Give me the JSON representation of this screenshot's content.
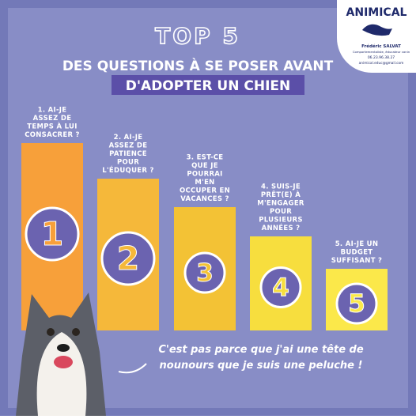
{
  "logo": {
    "brand": "ANIMICAL",
    "name": "Frédéric SALVAT",
    "tagline": "Comportementaliste, éducateur canin",
    "phone": "06.23.96.38.27",
    "email": "animical.educ@gmail.com"
  },
  "header": {
    "kicker": "TOP 5",
    "line1": "DES QUESTIONS À SE POSER AVANT",
    "line2": "D'ADOPTER UN CHIEN"
  },
  "steps": [
    {
      "number": "1",
      "lines": [
        "1. AI-JE",
        "ASSEZ DE",
        "TEMPS À LUI",
        "CONSACRER ?"
      ]
    },
    {
      "number": "2",
      "lines": [
        "2. AI-JE",
        "ASSEZ DE",
        "PATIENCE",
        "POUR",
        "L'ÉDUQUER ?"
      ]
    },
    {
      "number": "3",
      "lines": [
        "3. EST-CE",
        "QUE JE",
        "POURRAI",
        "M'EN",
        "OCCUPER EN",
        "VACANCES ?"
      ]
    },
    {
      "number": "4",
      "lines": [
        "4. SUIS-JE",
        "PRÊT(E) À",
        "M'ENGAGER",
        "POUR",
        "PLUSIEURS",
        "ANNÉES ?"
      ]
    },
    {
      "number": "5",
      "lines": [
        "5. AI-JE UN",
        "BUDGET",
        "SUFFISANT ?"
      ]
    }
  ],
  "quote": [
    "C'est pas parce que j'ai une tête de",
    "nounours que je suis une peluche !"
  ]
}
